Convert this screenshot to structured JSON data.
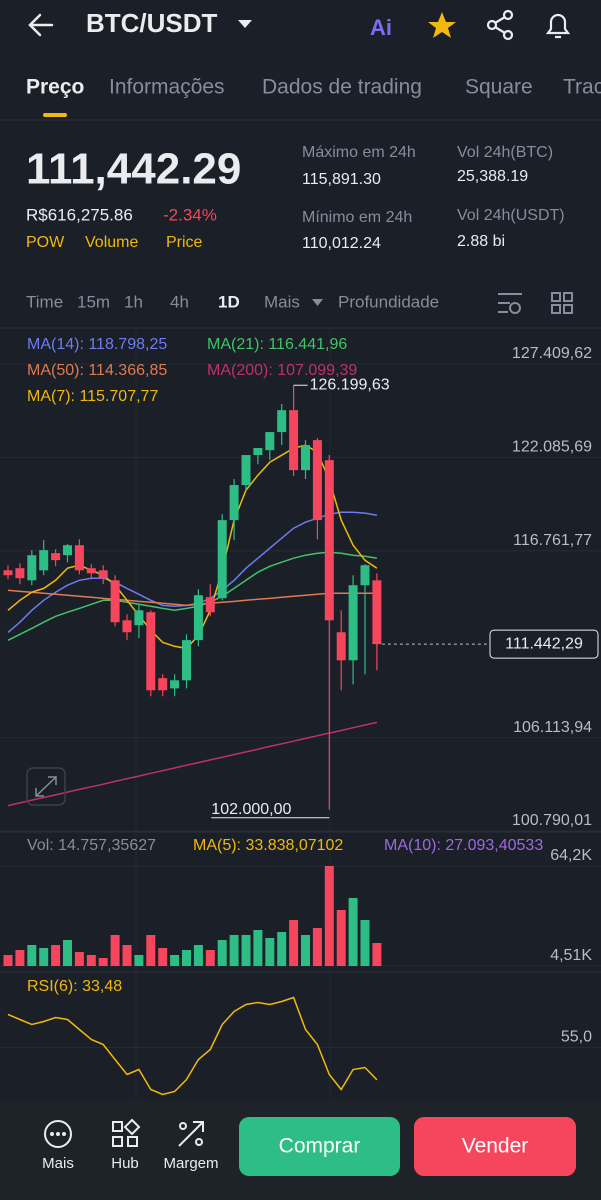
{
  "header": {
    "title": "BTC/USDT",
    "ai_label": "Ai"
  },
  "tabs": [
    "Preço",
    "Informações",
    "Dados de trading",
    "Square",
    "Trac"
  ],
  "price": {
    "last": "111,442.29",
    "fiat": "R$616,275.86",
    "change": "-2.34%",
    "tags": [
      "POW",
      "Volume",
      "Price"
    ]
  },
  "stats": [
    {
      "label": "Máximo em 24h",
      "value": "115,891.30"
    },
    {
      "label": "Vol 24h(BTC)",
      "value": "25,388.19"
    },
    {
      "label": "Mínimo em 24h",
      "value": "110,012.24"
    },
    {
      "label": "Vol 24h(USDT)",
      "value": "2.88 bi"
    }
  ],
  "intervals": [
    "Time",
    "15m",
    "1h",
    "4h",
    "1D",
    "Mais",
    "Profundidade"
  ],
  "chart": {
    "type": "candlestick",
    "ylim": [
      100790.01,
      127409.62
    ],
    "yticks": [
      {
        "value": 127409.62,
        "label": "127.409,62"
      },
      {
        "value": 122085.69,
        "label": "122.085,69"
      },
      {
        "value": 116761.77,
        "label": "116.761,77"
      },
      {
        "value": 106113.94,
        "label": "106.113,94"
      },
      {
        "value": 100790.01,
        "label": "100.790,01"
      }
    ],
    "last_price": {
      "value": 111442.29,
      "label": "111.442,29"
    },
    "high_marker": {
      "value": 126199.63,
      "label": "126.199,63"
    },
    "low_marker": {
      "value": 102000,
      "label": "102.000,00"
    },
    "up_color": "#2ebd85",
    "down_color": "#f6465d",
    "candles": [
      {
        "open": 115650,
        "high": 115940,
        "low": 115140,
        "close": 115370
      },
      {
        "open": 115770,
        "high": 116050,
        "low": 114860,
        "close": 115200
      },
      {
        "open": 115080,
        "high": 116800,
        "low": 114800,
        "close": 116510
      },
      {
        "open": 115650,
        "high": 117370,
        "low": 115370,
        "close": 116800
      },
      {
        "open": 116630,
        "high": 116850,
        "low": 115880,
        "close": 116230
      },
      {
        "open": 116510,
        "high": 117140,
        "low": 116110,
        "close": 117080
      },
      {
        "open": 117080,
        "high": 117420,
        "low": 115420,
        "close": 115650
      },
      {
        "open": 115770,
        "high": 116000,
        "low": 115200,
        "close": 115480
      },
      {
        "open": 115650,
        "high": 115940,
        "low": 114860,
        "close": 115200
      },
      {
        "open": 115080,
        "high": 115370,
        "low": 112460,
        "close": 112690
      },
      {
        "open": 112800,
        "high": 113140,
        "low": 111670,
        "close": 112120
      },
      {
        "open": 112520,
        "high": 113720,
        "low": 111780,
        "close": 113370
      },
      {
        "open": 113260,
        "high": 113370,
        "low": 108470,
        "close": 108810
      },
      {
        "open": 109500,
        "high": 109720,
        "low": 108470,
        "close": 108810
      },
      {
        "open": 108920,
        "high": 109720,
        "low": 108470,
        "close": 109380
      },
      {
        "open": 109380,
        "high": 112000,
        "low": 108920,
        "close": 111670
      },
      {
        "open": 111670,
        "high": 114570,
        "low": 111320,
        "close": 114230
      },
      {
        "open": 114120,
        "high": 114860,
        "low": 113030,
        "close": 113260
      },
      {
        "open": 114060,
        "high": 118850,
        "low": 113940,
        "close": 118510
      },
      {
        "open": 118510,
        "high": 120850,
        "low": 117370,
        "close": 120510
      },
      {
        "open": 120510,
        "high": 122220,
        "low": 120220,
        "close": 122220
      },
      {
        "open": 122220,
        "high": 122620,
        "low": 121700,
        "close": 122620
      },
      {
        "open": 122500,
        "high": 123530,
        "low": 121930,
        "close": 123530
      },
      {
        "open": 123530,
        "high": 125130,
        "low": 122790,
        "close": 124780
      },
      {
        "open": 124780,
        "high": 126199.63,
        "low": 121020,
        "close": 121360
      },
      {
        "open": 121360,
        "high": 123070,
        "low": 120850,
        "close": 122790
      },
      {
        "open": 123070,
        "high": 123190,
        "low": 117420,
        "close": 118510
      },
      {
        "open": 121930,
        "high": 122220,
        "low": 102000,
        "close": 112800
      },
      {
        "open": 112120,
        "high": 113370,
        "low": 108810,
        "close": 110520
      },
      {
        "open": 110520,
        "high": 115370,
        "low": 109150,
        "close": 114800
      },
      {
        "open": 114800,
        "high": 116000,
        "low": 109720,
        "close": 115940
      },
      {
        "open": 115080,
        "high": 115480,
        "low": 109950,
        "close": 111442.29
      }
    ],
    "ma_lines": [
      {
        "legend": "MA(14): 118.798,25",
        "color": "#6d7cf2",
        "values": [
          112110,
          112690,
          113370,
          113940,
          114400,
          114800,
          115080,
          115200,
          115200,
          114970,
          114620,
          114280,
          113940,
          113650,
          113600,
          113650,
          113770,
          114050,
          114510,
          115080,
          115770,
          116340,
          116910,
          117480,
          118050,
          118390,
          118620,
          118850,
          118960,
          118960,
          118910,
          118790
        ]
      },
      {
        "legend": "MA(21): 116.441,96",
        "color": "#3fc46a",
        "values": [
          111660,
          112000,
          112340,
          112690,
          113030,
          113260,
          113480,
          113710,
          113940,
          113940,
          113830,
          113710,
          113600,
          113480,
          113370,
          113480,
          113600,
          113830,
          114170,
          114620,
          115080,
          115540,
          115880,
          116110,
          116340,
          116510,
          116620,
          116680,
          116620,
          116510,
          116450,
          116340
        ]
      },
      {
        "legend": "MA(50): 114.366,85",
        "color": "#e07a50",
        "values": [
          114510,
          114450,
          114400,
          114340,
          114280,
          114230,
          114170,
          114110,
          114050,
          114000,
          113940,
          113880,
          113830,
          113770,
          113710,
          113650,
          113710,
          113770,
          113830,
          113880,
          113940,
          114000,
          114050,
          114110,
          114170,
          114230,
          114280,
          114340,
          114340,
          114340,
          114340,
          114340
        ]
      },
      {
        "legend": "MA(200): 107.099,39",
        "color": "#c0306e",
        "values": [
          102240,
          102390,
          102550,
          102700,
          102850,
          103010,
          103160,
          103310,
          103460,
          103620,
          103770,
          103920,
          104080,
          104230,
          104380,
          104540,
          104690,
          104840,
          104990,
          105150,
          105300,
          105450,
          105610,
          105760,
          105910,
          106070,
          106220,
          106370,
          106520,
          106680,
          106830,
          106980
        ]
      },
      {
        "legend": "MA(7): 115.707,77",
        "color": "#f0b90b",
        "values": [
          113370,
          113940,
          114400,
          114620,
          115080,
          115770,
          115940,
          115650,
          115370,
          114800,
          113940,
          113080,
          112230,
          111540,
          111320,
          111200,
          111940,
          113370,
          115650,
          118510,
          120220,
          121070,
          121810,
          122210,
          122610,
          122780,
          122390,
          120790,
          118510,
          117080,
          116220,
          115770
        ]
      }
    ],
    "volume": {
      "legends": [
        {
          "text": "Vol: 14.757,35627",
          "color": "#848e9c"
        },
        {
          "text": "MA(5): 33.838,07102",
          "color": "#f0b90b"
        },
        {
          "text": "MA(10): 27.093,40533",
          "color": "#9c6ade"
        }
      ],
      "ylim": [
        4510,
        64200
      ],
      "yticks": [
        {
          "value": 64200,
          "label": "64,2K"
        },
        {
          "value": 4510,
          "label": "4,51K"
        }
      ],
      "values": [
        11080,
        14060,
        17050,
        15260,
        17050,
        20030,
        12870,
        11080,
        9290,
        23020,
        17050,
        11080,
        23020,
        15260,
        11080,
        14060,
        17050,
        14060,
        20030,
        23020,
        23020,
        26000,
        21230,
        24810,
        31970,
        23020,
        27200,
        64200,
        37940,
        45110,
        31970,
        18240
      ]
    },
    "rsi": {
      "legend": "RSI(6): 33,48",
      "color": "#f0b90b",
      "ylim": [
        20,
        90
      ],
      "yticks": [
        {
          "value": 55,
          "label": "55,0"
        }
      ],
      "values": [
        77,
        73.7,
        70.3,
        72.3,
        75,
        73.7,
        67,
        60.3,
        57,
        47,
        37,
        40.3,
        27,
        23.7,
        25.7,
        33.7,
        47,
        53.7,
        70.3,
        79,
        83.7,
        85,
        83.7,
        85.7,
        88.3,
        67,
        57,
        37,
        27,
        40.3,
        41.7,
        33.48
      ]
    }
  },
  "nav": {
    "items": [
      "Mais",
      "Hub",
      "Margem"
    ],
    "buy": "Comprar",
    "sell": "Vender"
  }
}
